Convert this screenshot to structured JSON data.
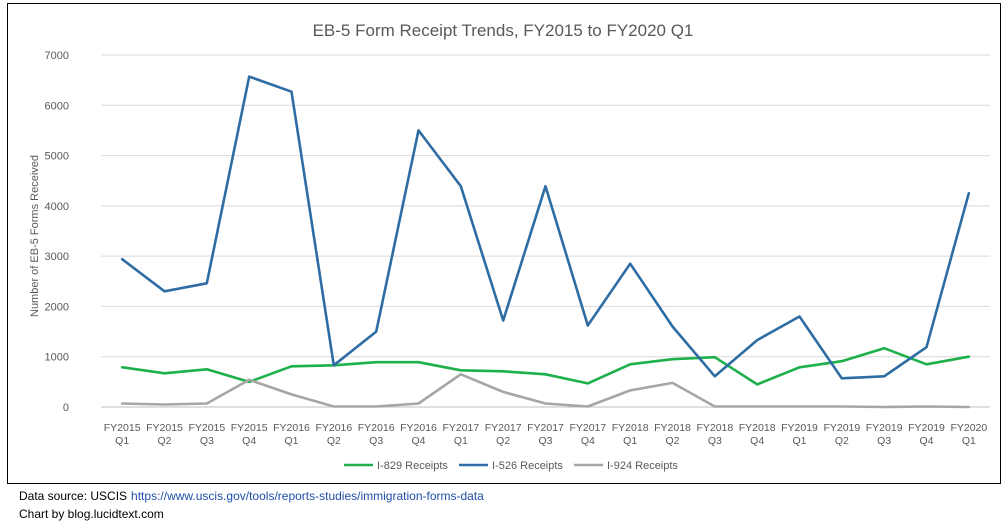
{
  "chart_data": {
    "type": "line",
    "title": "EB-5 Form Receipt Trends, FY2015 to FY2020 Q1",
    "ylabel": "Number  of EB-5 Forms Received",
    "xlabel": "",
    "ylim": [
      0,
      7000
    ],
    "yticks": [
      0,
      1000,
      2000,
      3000,
      4000,
      5000,
      6000,
      7000
    ],
    "grid": true,
    "legend_position": "bottom",
    "categories": [
      [
        "FY2015",
        "Q1"
      ],
      [
        "FY2015",
        "Q2"
      ],
      [
        "FY2015",
        "Q3"
      ],
      [
        "FY2015",
        "Q4"
      ],
      [
        "FY2016",
        "Q1"
      ],
      [
        "FY2016",
        "Q2"
      ],
      [
        "FY2016",
        "Q3"
      ],
      [
        "FY2016",
        "Q4"
      ],
      [
        "FY2017",
        "Q1"
      ],
      [
        "FY2017",
        "Q2"
      ],
      [
        "FY2017",
        "Q3"
      ],
      [
        "FY2017",
        "Q4"
      ],
      [
        "FY2018",
        "Q1"
      ],
      [
        "FY2018",
        "Q2"
      ],
      [
        "FY2018",
        "Q3"
      ],
      [
        "FY2018",
        "Q4"
      ],
      [
        "FY2019",
        "Q1"
      ],
      [
        "FY2019",
        "Q2"
      ],
      [
        "FY2019",
        "Q3"
      ],
      [
        "FY2019",
        "Q4"
      ],
      [
        "FY2020",
        "Q1"
      ]
    ],
    "series": [
      {
        "name": "I-829 Receipts",
        "color": "#1db04b",
        "values": [
          790,
          670,
          750,
          500,
          810,
          830,
          890,
          890,
          730,
          710,
          650,
          470,
          850,
          950,
          990,
          450,
          790,
          910,
          1170,
          850,
          1000
        ]
      },
      {
        "name": "I-526 Receipts",
        "color": "#2e6da4",
        "values": [
          2940,
          2300,
          2460,
          6570,
          6270,
          830,
          1500,
          5500,
          4390,
          1720,
          4390,
          1620,
          2850,
          1600,
          610,
          1330,
          1800,
          570,
          610,
          1190,
          4250
        ]
      },
      {
        "name": "I-924 Receipts",
        "color": "#a6a6a6",
        "values": [
          70,
          50,
          70,
          540,
          250,
          10,
          10,
          70,
          650,
          300,
          70,
          10,
          330,
          480,
          10,
          10,
          10,
          10,
          0,
          10,
          0
        ]
      }
    ]
  },
  "footer": {
    "source_label": "Data source: USCIS",
    "source_url": "https://www.uscis.gov/tools/reports-studies/immigration-forms-data",
    "credit": "Chart by blog.lucidtext.com"
  }
}
